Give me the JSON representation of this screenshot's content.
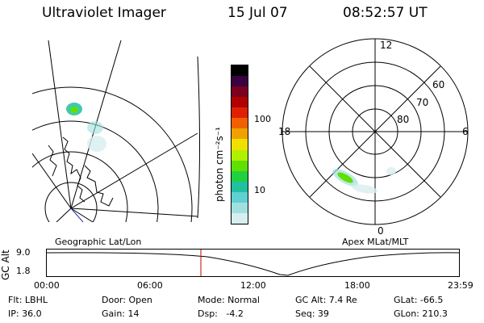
{
  "header": {
    "instrument": "Ultraviolet Imager",
    "date": "15 Jul 07",
    "time": "08:52:57 UT"
  },
  "colorbar": {
    "unit_label": "photon cm⁻²s⁻¹",
    "ticks": [
      "100",
      "10"
    ],
    "colors": [
      "#000000",
      "#3a0040",
      "#7a0020",
      "#b00000",
      "#e02000",
      "#f06000",
      "#f0a000",
      "#f0e000",
      "#b0f000",
      "#60e000",
      "#20d040",
      "#20c0a0",
      "#60d0d0",
      "#a0e0e0",
      "#d8eeee"
    ]
  },
  "geo_panel": {
    "label": "Geographic Lat/Lon"
  },
  "apex_panel": {
    "label": "Apex MLat/MLT",
    "mlt_labels": {
      "top": "12",
      "left": "18",
      "right": "6",
      "bottom": "0"
    },
    "lat_labels": [
      "60",
      "70",
      "80"
    ]
  },
  "altitude_strip": {
    "ylabel": "GC Alt",
    "y_ticks": [
      "9.0",
      "1.8"
    ],
    "x_ticks": [
      "00:00",
      "06:00",
      "12:00",
      "18:00",
      "23:59"
    ],
    "current_time_marker_color": "#cc0000"
  },
  "info": {
    "filter": "Flt: LBHL",
    "ip": "IP: 36.0",
    "door": "Door: Open",
    "gain": "Gain: 14",
    "mode": "Mode: Normal",
    "dsp": "Dsp:   -4.2",
    "gc_alt": "GC Alt: 7.4 Re",
    "seq": "Seq: 39",
    "glat": "GLat: -66.5",
    "glon": "GLon: 210.3"
  }
}
